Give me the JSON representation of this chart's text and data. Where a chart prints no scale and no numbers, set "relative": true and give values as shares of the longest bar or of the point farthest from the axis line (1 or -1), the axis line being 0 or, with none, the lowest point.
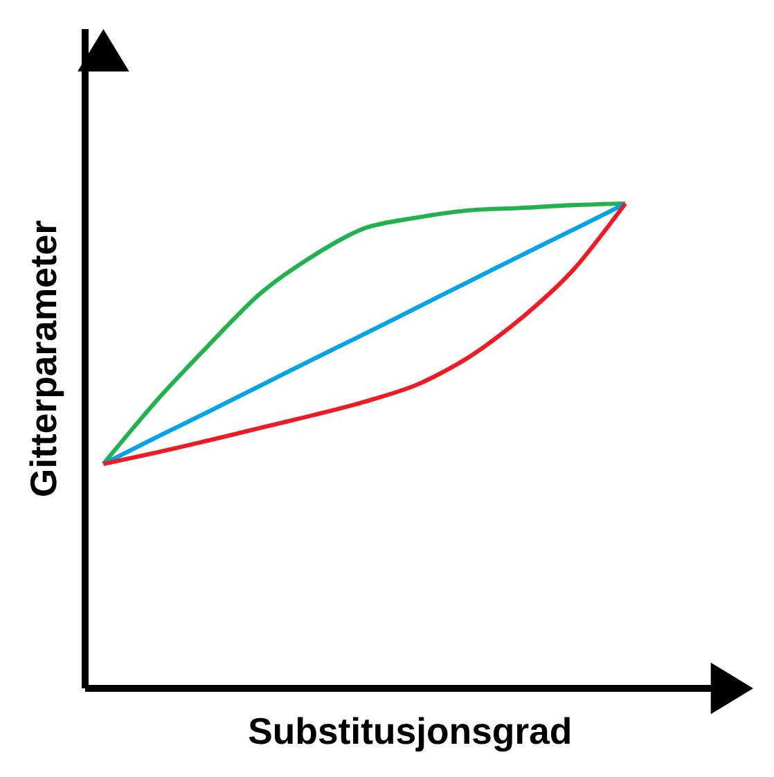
{
  "chart_data": {
    "type": "line",
    "xlabel": "Substitusjonsgrad",
    "ylabel": "Gitterparameter",
    "relative": true,
    "marker": "none",
    "categories": [
      null,
      null,
      null,
      null,
      null,
      null,
      null,
      null,
      null,
      null,
      null
    ],
    "series": [
      {
        "color": "#22b14c",
        "values": [
          0.463,
          0.591,
          0.706,
          0.814,
          0.891,
          0.949,
          0.971,
          0.986,
          0.991,
          0.997,
          1
        ]
      },
      {
        "color": "#00a2e8",
        "values": [
          0.463,
          0.517,
          0.57,
          0.624,
          0.678,
          0.731,
          0.785,
          0.839,
          0.893,
          0.946,
          1
        ]
      },
      {
        "color": "#ed1c24",
        "values": [
          0.463,
          0.486,
          0.511,
          0.537,
          0.563,
          0.591,
          0.626,
          0.683,
          0.763,
          0.863,
          1
        ]
      }
    ]
  }
}
